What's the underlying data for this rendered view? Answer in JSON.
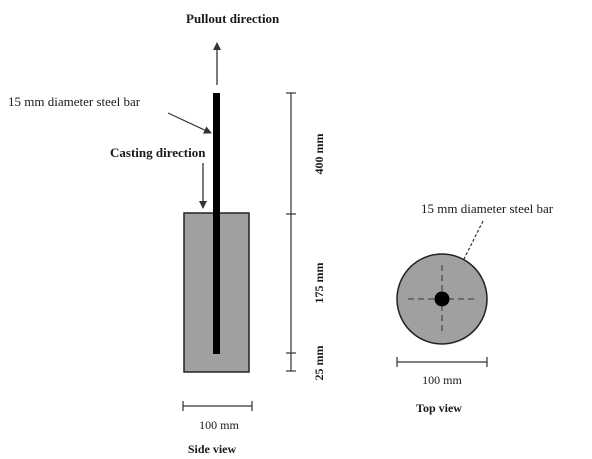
{
  "side_view": {
    "pullout_label": "Pullout direction",
    "bar_label": "15 mm diameter steel bar",
    "casting_label": "Casting direction",
    "dim_top": "400 mm",
    "dim_middle": "175 mm",
    "dim_bottom": "25 mm",
    "width_label": "100 mm",
    "caption": "Side view"
  },
  "top_view": {
    "bar_label": "15 mm diameter steel bar",
    "width_label": "100 mm",
    "caption": "Top view"
  },
  "colors": {
    "concrete": "#a0a0a0",
    "steel": "#000000",
    "line": "#333333"
  }
}
